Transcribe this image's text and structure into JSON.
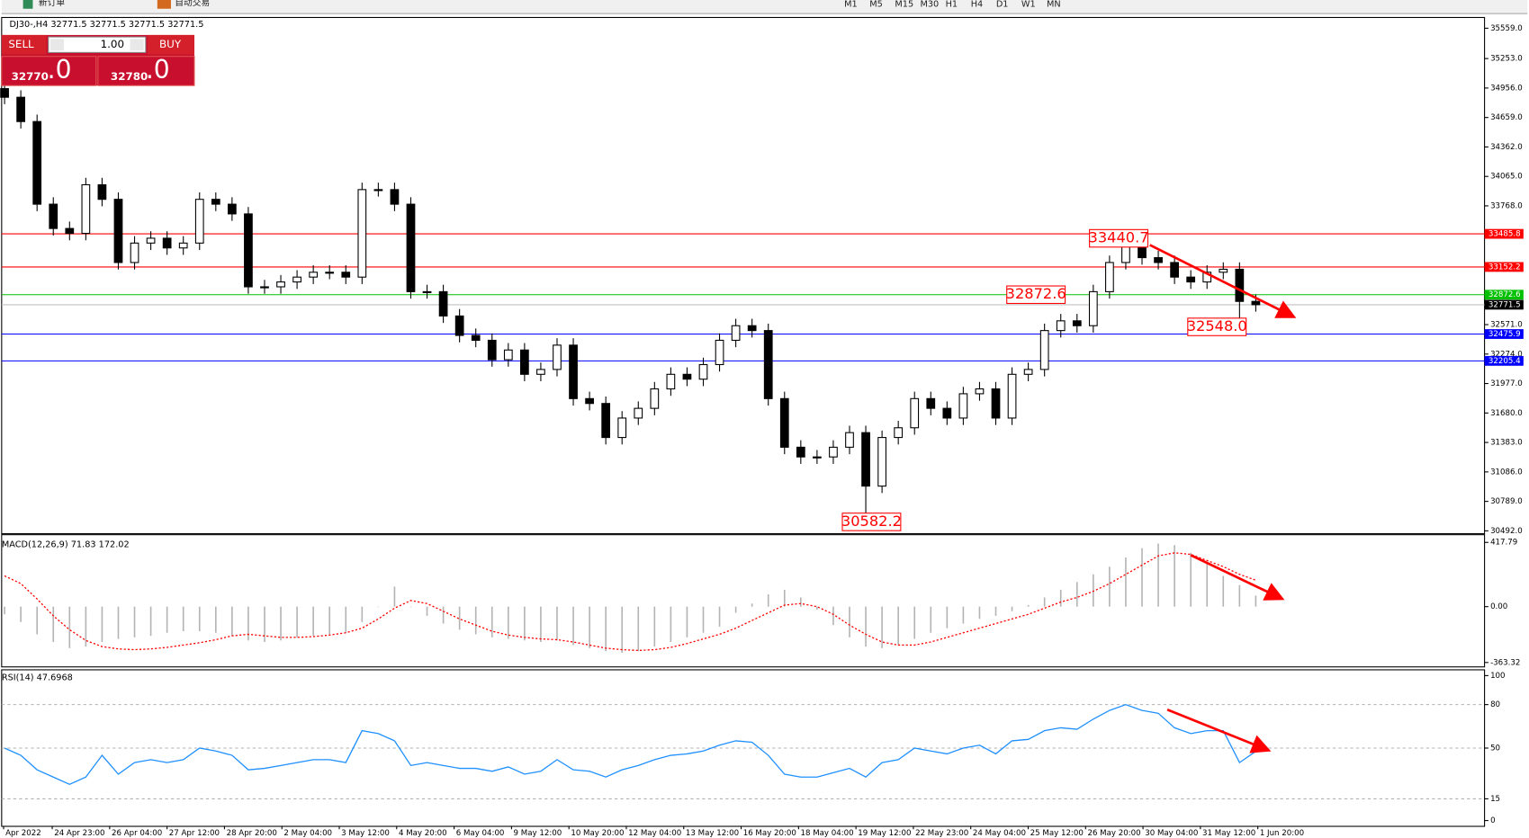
{
  "toolbar": {
    "new_order": "新订单",
    "auto_trading": "自动交易",
    "timeframes": [
      "M1",
      "M5",
      "M15",
      "M30",
      "H1",
      "H4",
      "D1",
      "W1",
      "MN"
    ]
  },
  "trade_panel": {
    "sell": "SELL",
    "lot": "1.00",
    "buy": "BUY",
    "bid_main": "32770",
    "bid_frac": ".0",
    "ask_main": "32780",
    "ask_frac": ".0"
  },
  "x_labels": [
    "Apr 2022",
    "24 Apr 23:00",
    "26 Apr 04:00",
    "27 Apr 12:00",
    "28 Apr 20:00",
    "2 May 04:00",
    "3 May 12:00",
    "4 May 20:00",
    "6 May 04:00",
    "9 May 12:00",
    "10 May 20:00",
    "12 May 04:00",
    "13 May 12:00",
    "16 May 20:00",
    "18 May 04:00",
    "19 May 12:00",
    "22 May 23:00",
    "24 May 04:00",
    "25 May 12:00",
    "26 May 20:00",
    "30 May 04:00",
    "31 May 12:00",
    "1 Jun 20:00"
  ],
  "chart_data": [
    {
      "type": "candlestick",
      "title": "DJ30-,H4  32771.5 32771.5 32771.5 32771.5",
      "ylim": [
        30463,
        35667
      ],
      "yticks": [
        {
          "value": 35559,
          "label": "35559.0"
        },
        {
          "value": 35253,
          "label": "35253.0"
        },
        {
          "value": 34956,
          "label": "34956.0"
        },
        {
          "value": 34659,
          "label": "34659.0"
        },
        {
          "value": 34362,
          "label": "34362.0"
        },
        {
          "value": 34065,
          "label": "34065.0"
        },
        {
          "value": 33768,
          "label": "33768.0"
        },
        {
          "value": 32571,
          "label": "32571.0"
        },
        {
          "value": 32274,
          "label": "32274.0"
        },
        {
          "value": 31977,
          "label": "31977.0"
        },
        {
          "value": 31680,
          "label": "31680.0"
        },
        {
          "value": 31383,
          "label": "31383.0"
        },
        {
          "value": 31086,
          "label": "31086.0"
        },
        {
          "value": 30789,
          "label": "30789.0"
        },
        {
          "value": 30492,
          "label": "30492.0"
        }
      ],
      "open": [
        34950,
        34863,
        34618,
        33785,
        33540,
        33491,
        33981,
        33834,
        33197,
        33393,
        33442,
        33344,
        33393,
        33834,
        33785,
        33687,
        32952,
        32952,
        33001,
        33050,
        33099,
        33099,
        33050,
        33932,
        33932,
        33785,
        32903,
        32903,
        32658,
        32462,
        32413,
        32217,
        32315,
        32070,
        32119,
        32364,
        31825,
        31776,
        31433,
        31629,
        31727,
        31923,
        32070,
        32021,
        32168,
        32413,
        32560,
        32511,
        31825,
        31335,
        31237,
        31237,
        31335,
        31482,
        30943,
        31433,
        31531,
        31825,
        31727,
        31629,
        31874,
        31923,
        31629,
        32070,
        32119,
        32511,
        32609,
        32560,
        32903,
        33197,
        33393,
        33246,
        33197,
        33050,
        33001,
        33099,
        33129,
        32805
      ],
      "high": [
        35020,
        34933,
        34688,
        33855,
        33610,
        34051,
        34051,
        33904,
        33463,
        33512,
        33512,
        33463,
        33904,
        33904,
        33855,
        33757,
        33022,
        33071,
        33120,
        33169,
        33169,
        33169,
        34002,
        34002,
        34002,
        33855,
        32973,
        32973,
        32728,
        32532,
        32483,
        32385,
        32385,
        32189,
        32434,
        32434,
        31895,
        31846,
        31699,
        31797,
        31993,
        32140,
        32140,
        32238,
        32483,
        32630,
        32630,
        32581,
        31895,
        31405,
        31307,
        31405,
        31552,
        31552,
        31503,
        31601,
        31895,
        31895,
        31797,
        31944,
        31993,
        31993,
        32140,
        32189,
        32581,
        32679,
        32679,
        32973,
        33267,
        33440.7,
        33420,
        33316,
        33267,
        33120,
        33169,
        33199,
        33199,
        32875
      ],
      "low": [
        34793,
        34548,
        33715,
        33470,
        33421,
        33421,
        33764,
        33127,
        33127,
        33323,
        33274,
        33274,
        33323,
        33715,
        33617,
        32882,
        32882,
        32882,
        32931,
        32980,
        33029,
        32980,
        32980,
        33862,
        33715,
        32833,
        32833,
        32588,
        32392,
        32343,
        32147,
        32147,
        32000,
        32000,
        32049,
        31755,
        31706,
        31363,
        31363,
        31559,
        31657,
        31853,
        31951,
        31951,
        32098,
        32343,
        32441,
        31755,
        31265,
        31167,
        31167,
        31167,
        31265,
        30582.2,
        30873,
        31363,
        31461,
        31657,
        31559,
        31559,
        31804,
        31559,
        31559,
        32000,
        32049,
        32441,
        32490,
        32490,
        32833,
        33127,
        33176,
        33127,
        32980,
        32931,
        32931,
        33029,
        32548.0,
        32701.5
      ],
      "close": [
        34863,
        34618,
        33785,
        33540,
        33491,
        33981,
        33834,
        33197,
        33393,
        33442,
        33344,
        33393,
        33834,
        33785,
        33687,
        32952,
        32952,
        33001,
        33050,
        33099,
        33099,
        33050,
        33932,
        33932,
        33785,
        32903,
        32903,
        32658,
        32462,
        32413,
        32217,
        32315,
        32070,
        32119,
        32364,
        31825,
        31776,
        31433,
        31629,
        31727,
        31923,
        32070,
        32021,
        32168,
        32413,
        32560,
        32511,
        31825,
        31335,
        31237,
        31237,
        31335,
        31482,
        30943,
        31433,
        31531,
        31825,
        31727,
        31629,
        31874,
        31923,
        31629,
        32070,
        32119,
        32511,
        32609,
        32560,
        32903,
        33197,
        33393,
        33246,
        33197,
        33050,
        33001,
        33099,
        33129,
        32805,
        32771.5
      ],
      "levels": [
        {
          "value": 33485.8,
          "color": "#ff0000",
          "box": "#ff0000"
        },
        {
          "value": 33152.2,
          "color": "#ff0000",
          "box": "#ff0000"
        },
        {
          "value": 32872.6,
          "color": "#00c000",
          "box": "#00c000"
        },
        {
          "value": 32771.5,
          "color": "#c0c0c0",
          "box": "#000000"
        },
        {
          "value": 32475.9,
          "color": "#0000ff",
          "box": "#0000ff"
        },
        {
          "value": 32205.4,
          "color": "#0000ff",
          "box": "#0000ff"
        }
      ],
      "annotations": [
        {
          "value": 33440.7,
          "label": "33440.7"
        },
        {
          "value": 32872.6,
          "label": "32872.6"
        },
        {
          "value": 32548.0,
          "label": "32548.0"
        },
        {
          "value": 30582.2,
          "label": "30582.2"
        }
      ]
    },
    {
      "type": "macd",
      "title": "MACD(12,26,9) 71.83 172.02",
      "ylim": [
        -392,
        468
      ],
      "yticks": [
        417.79,
        {
          "value": 0,
          "label": "0.00"
        },
        -363.32
      ],
      "color": "#b4b4b4",
      "signal_color": "#ff0000",
      "values": [
        -50,
        -100,
        -180,
        -230,
        -270,
        -260,
        -230,
        -210,
        -200,
        -190,
        -170,
        -160,
        -160,
        -170,
        -190,
        -220,
        -230,
        -220,
        -200,
        -190,
        -180,
        -170,
        -100,
        0,
        130,
        0,
        -60,
        -110,
        -150,
        -180,
        -200,
        -210,
        -220,
        -230,
        -220,
        -250,
        -270,
        -290,
        -300,
        -290,
        -260,
        -230,
        -200,
        -170,
        -130,
        -40,
        20,
        80,
        110,
        60,
        -20,
        -120,
        -200,
        -260,
        -270,
        -250,
        -210,
        -170,
        -140,
        -110,
        -80,
        -60,
        -30,
        10,
        60,
        110,
        160,
        210,
        260,
        320,
        380,
        410,
        400,
        350,
        280,
        200,
        140,
        71.83
      ],
      "signal": [
        200,
        150,
        50,
        -60,
        -150,
        -220,
        -260,
        -275,
        -280,
        -275,
        -265,
        -250,
        -235,
        -215,
        -190,
        -180,
        -190,
        -200,
        -200,
        -195,
        -185,
        -170,
        -140,
        -80,
        -10,
        40,
        20,
        -30,
        -80,
        -120,
        -160,
        -185,
        -200,
        -210,
        -215,
        -230,
        -250,
        -270,
        -280,
        -285,
        -280,
        -265,
        -240,
        -210,
        -180,
        -140,
        -90,
        -40,
        10,
        20,
        0,
        -50,
        -120,
        -180,
        -230,
        -250,
        -250,
        -230,
        -200,
        -170,
        -140,
        -110,
        -80,
        -50,
        -10,
        30,
        60,
        100,
        150,
        210,
        270,
        330,
        350,
        340,
        300,
        260,
        210,
        172.02
      ]
    },
    {
      "type": "line",
      "title": "RSI(14) 47.6968",
      "ylim": [
        -4,
        104
      ],
      "yticks": [
        100,
        80,
        50,
        15,
        0
      ],
      "levels": [
        80,
        50,
        15
      ],
      "color": "#1e90ff",
      "values": [
        50,
        45,
        35,
        30,
        25,
        30,
        45,
        32,
        40,
        42,
        40,
        42,
        50,
        48,
        45,
        35,
        36,
        38,
        40,
        42,
        42,
        40,
        62,
        60,
        55,
        38,
        40,
        38,
        36,
        36,
        34,
        37,
        32,
        34,
        42,
        35,
        34,
        30,
        35,
        38,
        42,
        45,
        46,
        48,
        52,
        55,
        54,
        45,
        32,
        30,
        30,
        33,
        36,
        30,
        40,
        42,
        50,
        48,
        46,
        50,
        52,
        46,
        55,
        56,
        62,
        64,
        63,
        70,
        76,
        80,
        76,
        74,
        64,
        60,
        62,
        62,
        40,
        47.6968
      ]
    }
  ]
}
